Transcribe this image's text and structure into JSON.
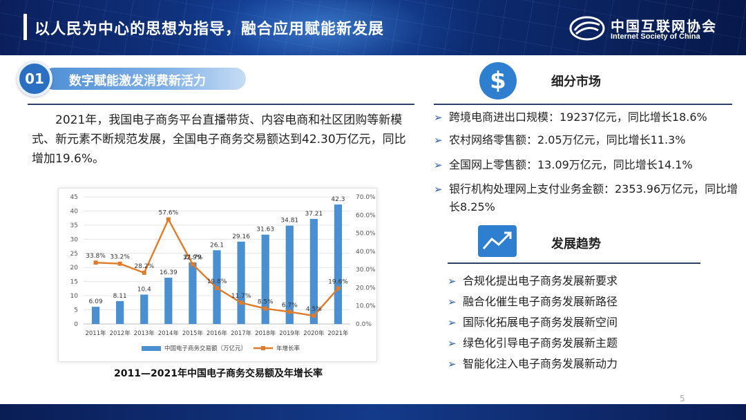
{
  "header": {
    "title": "以人民为中心的思想为指导，融合应用赋能新发展",
    "logo_cn": "中国互联网协会",
    "logo_en": "Internet Society of China"
  },
  "section": {
    "number": "01",
    "title": "数字赋能激发消费新活力"
  },
  "body": {
    "paragraph": "2021年，我国电子商务平台直播带货、内容电商和社区团购等新模式、新元素不断规范发展，全国电子商务交易额达到42.30万亿元，同比增加19.6%。"
  },
  "chart_caption": "2011—2021年中国电子商务交易额及年增长率",
  "chart_data": {
    "type": "bar+line",
    "categories": [
      "2011年",
      "2012年",
      "2013年",
      "2014年",
      "2015年",
      "2016年",
      "2017年",
      "2018年",
      "2019年",
      "2020年",
      "2021年"
    ],
    "series": [
      {
        "name": "中国电子商务交易额（万亿元）",
        "type": "bar",
        "axis": "left",
        "values": [
          6.09,
          8.11,
          10.4,
          16.39,
          21.79,
          26.1,
          29.16,
          31.63,
          34.81,
          37.21,
          42.3
        ],
        "labels": [
          "6.09",
          "8.11",
          "10.4",
          "16.39",
          "21.79",
          "26.1",
          "29.16",
          "31.63",
          "34.81",
          "37.21",
          "42.3"
        ],
        "color": "#4a8fd0"
      },
      {
        "name": "年增长率",
        "type": "line",
        "axis": "right",
        "values": [
          33.8,
          33.2,
          28.2,
          57.6,
          32.9,
          19.8,
          11.7,
          8.5,
          6.7,
          4.5,
          19.6
        ],
        "labels": [
          "33.8%",
          "33.2%",
          "28.2%",
          "57.6%",
          "32.9%",
          "19.8%",
          "11.7%",
          "8.5%",
          "6.7%",
          "4.5%",
          "19.6%"
        ],
        "color": "#e07b2a"
      }
    ],
    "y_left": {
      "min": 0,
      "max": 45,
      "ticks": [
        "0",
        "5",
        "10",
        "15",
        "20",
        "25",
        "30",
        "35",
        "40",
        "45"
      ]
    },
    "y_right": {
      "min": 0,
      "max": 70,
      "ticks": [
        "0.0%",
        "10.0%",
        "20.0%",
        "30.0%",
        "40.0%",
        "50.0%",
        "60.0%",
        "70.0%"
      ]
    },
    "legend_position": "bottom",
    "grid": "horizontal"
  },
  "right_panel": {
    "segment_heading": "细分市场",
    "segment_icon": "dollar-icon",
    "segment_items": [
      "跨境电商进出口规模：19237亿元，同比增长18.6%",
      "农村网络零售额：2.05万亿元，同比增长11.3%",
      "全国网上零售额：13.09万亿元，同比增长14.1%",
      "银行机构处理网上支付业务金额：2353.96万亿元，同比增长8.25%"
    ],
    "trend_heading": "发展趋势",
    "trend_icon": "trend-chart-icon",
    "trend_items": [
      "合规化提出电子商务发展新要求",
      "融合化催生电子商务发展新路径",
      "国际化拓展电子商务发展新空间",
      "绿色化引导电子商务发展新主题",
      "智能化注入电子商务发展新动力"
    ],
    "bullet_glyph": "➢"
  },
  "page_number": "5",
  "colors": {
    "header_bg": "#123a8c",
    "accent_blue": "#2f7fd0",
    "bar_blue": "#4a8fd0",
    "line_orange": "#e07b2a"
  }
}
